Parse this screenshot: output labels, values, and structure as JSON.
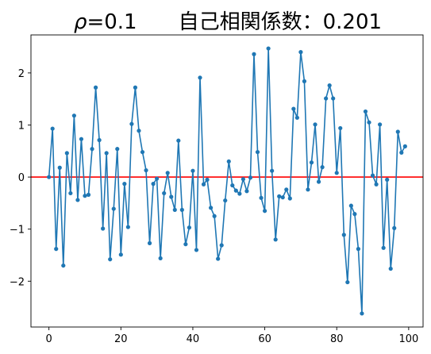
{
  "chart_data": {
    "type": "line",
    "title": "ρ=0.1　　自己相関係数：0.201",
    "title_rho": "ρ",
    "title_rest": "=0.1　　自己相関係数：0.201",
    "xlabel": "",
    "ylabel": "",
    "xlim": [
      -5,
      104
    ],
    "ylim": [
      -2.88,
      2.73
    ],
    "grid": false,
    "x_ticks": [
      0,
      20,
      40,
      60,
      80,
      100
    ],
    "x_tick_labels": [
      "0",
      "20",
      "40",
      "60",
      "80",
      "100"
    ],
    "y_ticks": [
      -2,
      -1,
      0,
      1,
      2
    ],
    "y_tick_labels": [
      "−2",
      "−1",
      "0",
      "1",
      "2"
    ],
    "series": [
      {
        "color": "#1f77b4",
        "marker": "circle",
        "x": [
          0,
          1,
          2,
          3,
          4,
          5,
          6,
          7,
          8,
          9,
          10,
          11,
          12,
          13,
          14,
          15,
          16,
          17,
          18,
          19,
          20,
          21,
          22,
          23,
          24,
          25,
          26,
          27,
          28,
          29,
          30,
          31,
          32,
          33,
          34,
          35,
          36,
          37,
          38,
          39,
          40,
          41,
          42,
          43,
          44,
          45,
          46,
          47,
          48,
          49,
          50,
          51,
          52,
          53,
          54,
          55,
          56,
          57,
          58,
          59,
          60,
          61,
          62,
          63,
          64,
          65,
          66,
          67,
          68,
          69,
          70,
          71,
          72,
          73,
          74,
          75,
          76,
          77,
          78,
          79,
          80,
          81,
          82,
          83,
          84,
          85,
          86,
          87,
          88,
          89,
          90,
          91,
          92,
          93,
          94,
          95,
          96,
          97,
          98,
          99
        ],
        "values": [
          0.0,
          0.93,
          -1.38,
          0.18,
          -1.7,
          0.46,
          -0.31,
          1.18,
          -0.44,
          0.73,
          -0.36,
          -0.34,
          0.54,
          1.72,
          0.71,
          -0.99,
          0.46,
          -1.58,
          -0.61,
          0.54,
          -1.49,
          -0.13,
          -0.96,
          1.02,
          1.72,
          0.89,
          0.48,
          0.13,
          -1.27,
          -0.13,
          -0.03,
          -1.56,
          -0.31,
          0.08,
          -0.38,
          -0.63,
          0.7,
          -0.63,
          -1.29,
          -0.97,
          0.12,
          -1.4,
          1.91,
          -0.14,
          -0.05,
          -0.59,
          -0.75,
          -1.57,
          -1.31,
          -0.45,
          0.3,
          -0.16,
          -0.26,
          -0.32,
          -0.04,
          -0.27,
          -0.01,
          2.36,
          0.48,
          -0.4,
          -0.65,
          2.47,
          0.12,
          -1.2,
          -0.37,
          -0.39,
          -0.24,
          -0.41,
          1.31,
          1.14,
          2.4,
          1.84,
          -0.24,
          0.28,
          1.01,
          -0.09,
          0.19,
          1.51,
          1.76,
          1.51,
          0.08,
          0.94,
          -1.11,
          -2.02,
          -0.55,
          -0.71,
          -1.38,
          -2.62,
          1.26,
          1.05,
          0.03,
          -0.14,
          1.01,
          -1.36,
          -0.05,
          -1.76,
          -0.98,
          0.87,
          0.47,
          0.59
        ]
      }
    ],
    "reference_line": {
      "y": 0,
      "color": "#ff0000"
    }
  }
}
